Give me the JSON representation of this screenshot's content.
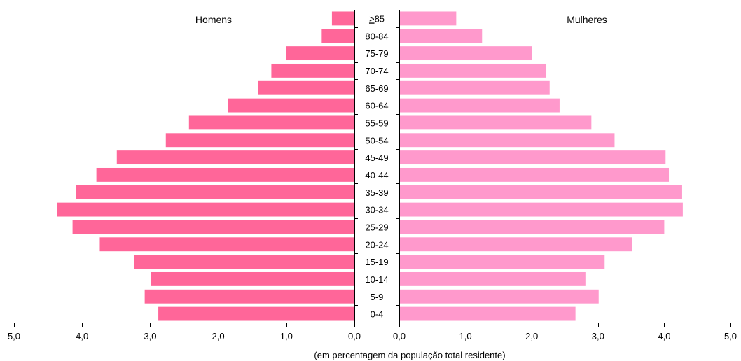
{
  "chart_data": {
    "type": "bar",
    "orientation": "horizontal",
    "subtype": "population-pyramid",
    "categories": [
      "≥85",
      "80-84",
      "75-79",
      "70-74",
      "65-69",
      "60-64",
      "55-59",
      "50-54",
      "45-49",
      "40-44",
      "35-39",
      "30-34",
      "25-29",
      "20-24",
      "15-19",
      "10-14",
      "5-9",
      "0-4"
    ],
    "series": [
      {
        "name": "Homens",
        "color": "#ff6699",
        "values": [
          0.33,
          0.48,
          1.0,
          1.22,
          1.41,
          1.86,
          2.43,
          2.77,
          3.49,
          3.79,
          4.09,
          4.37,
          4.14,
          3.74,
          3.24,
          2.99,
          3.08,
          2.88
        ]
      },
      {
        "name": "Mulheres",
        "color": "#ff99cc",
        "values": [
          0.86,
          1.25,
          2.0,
          2.22,
          2.27,
          2.42,
          2.9,
          3.25,
          4.02,
          4.07,
          4.27,
          4.28,
          4.0,
          3.51,
          3.1,
          2.81,
          3.01,
          2.66
        ]
      }
    ],
    "xlim": [
      0,
      5
    ],
    "xticks": [
      "0,0",
      "1,0",
      "2,0",
      "3,0",
      "4,0",
      "5,0"
    ],
    "xlabel": "(em percentagem da população total residente)",
    "legend_position": "top-inside",
    "grid": false
  }
}
